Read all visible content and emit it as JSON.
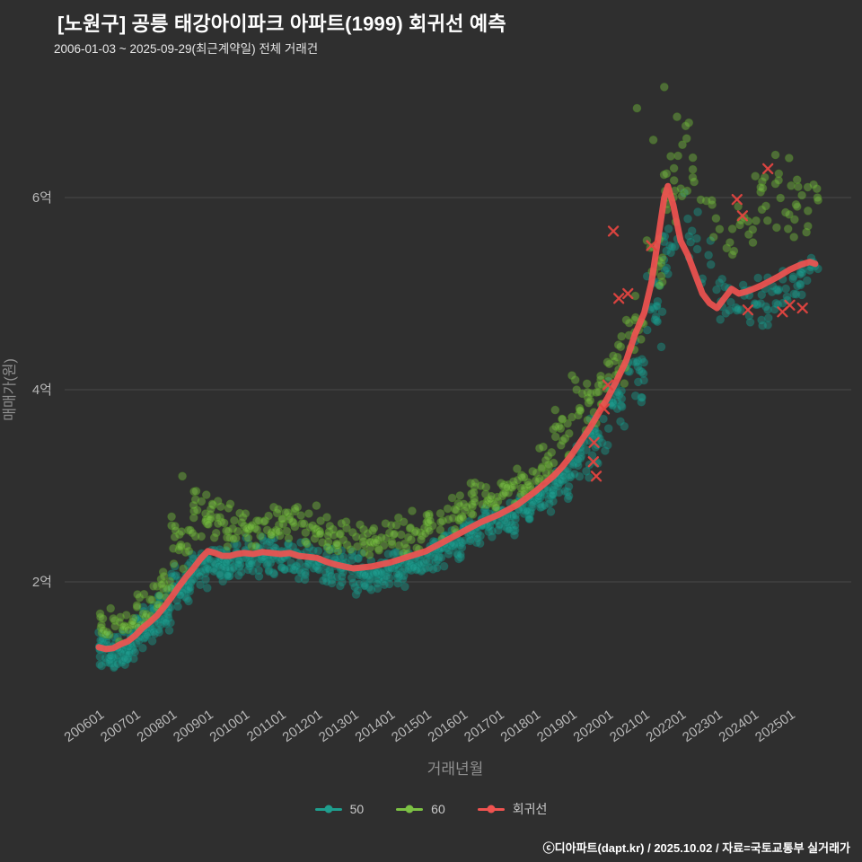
{
  "title": "[노원구] 공릉 태강아이파크 아파트(1999) 회귀선 예측",
  "subtitle": "2006-01-03 ~ 2025-09-29(최근계약일) 전체 거래건",
  "footer": "ⓒ디아파트(dapt.kr) / 2025.10.02 / 자료=국토교통부 실거래가",
  "chart_data": {
    "type": "scatter",
    "title": "[노원구] 공릉 태강아이파크 아파트(1999) 회귀선 예측",
    "xlabel": "거래년월",
    "ylabel": "매매가(원)",
    "x_tick_years": [
      2006,
      2007,
      2008,
      2009,
      2010,
      2011,
      2012,
      2013,
      2014,
      2015,
      2016,
      2017,
      2018,
      2019,
      2020,
      2021,
      2022,
      2023,
      2024,
      2025
    ],
    "x_tick_labels": [
      "200601",
      "200701",
      "200801",
      "200901",
      "201001",
      "201101",
      "201201",
      "201301",
      "201401",
      "201501",
      "201601",
      "201701",
      "201801",
      "201901",
      "202001",
      "202101",
      "202201",
      "202301",
      "202401",
      "202501"
    ],
    "y_ticks": [
      {
        "value": 2,
        "label": "2억"
      },
      {
        "value": 4,
        "label": "4억"
      },
      {
        "value": 6,
        "label": "6억"
      }
    ],
    "x_range": [
      2005.85,
      2025.95
    ],
    "y_range": [
      0.9,
      7.4
    ],
    "grid": "horizontal-only",
    "legend_position": "bottom-center",
    "colors": {
      "background": "#2f2f2f",
      "grid": "#4a4a4a",
      "tick_text": "#b8b8b8",
      "axis_title": "#909090"
    },
    "legend": [
      {
        "label": "50",
        "color": "#1f9e8e"
      },
      {
        "label": "60",
        "color": "#7cc144"
      },
      {
        "label": "회귀선",
        "color": "#ef5350"
      }
    ],
    "series": [
      {
        "name": "50",
        "kind": "scatter-bands",
        "color": "#1f9e8e",
        "stroke": "#117a6e",
        "bands": [
          [
            2006.0,
            1.05,
            1.5,
            45
          ],
          [
            2006.5,
            1.1,
            1.55,
            45
          ],
          [
            2007.0,
            1.25,
            1.75,
            40
          ],
          [
            2007.5,
            1.45,
            1.95,
            40
          ],
          [
            2008.0,
            1.7,
            2.2,
            40
          ],
          [
            2008.5,
            1.9,
            2.35,
            35
          ],
          [
            2009.0,
            2.0,
            2.4,
            30
          ],
          [
            2009.5,
            2.0,
            2.45,
            30
          ],
          [
            2010.0,
            2.0,
            2.5,
            30
          ],
          [
            2010.5,
            2.05,
            2.5,
            28
          ],
          [
            2011.0,
            2.05,
            2.5,
            28
          ],
          [
            2011.5,
            2.0,
            2.45,
            26
          ],
          [
            2012.0,
            1.95,
            2.4,
            26
          ],
          [
            2012.5,
            1.85,
            2.35,
            26
          ],
          [
            2013.0,
            1.8,
            2.3,
            28
          ],
          [
            2013.5,
            1.85,
            2.3,
            28
          ],
          [
            2014.0,
            1.9,
            2.35,
            28
          ],
          [
            2014.5,
            2.0,
            2.4,
            28
          ],
          [
            2015.0,
            2.1,
            2.5,
            30
          ],
          [
            2015.5,
            2.2,
            2.6,
            30
          ],
          [
            2016.0,
            2.3,
            2.7,
            30
          ],
          [
            2016.5,
            2.4,
            2.8,
            28
          ],
          [
            2017.0,
            2.45,
            2.85,
            28
          ],
          [
            2017.5,
            2.55,
            2.95,
            28
          ],
          [
            2018.0,
            2.65,
            3.1,
            30
          ],
          [
            2018.5,
            2.8,
            3.3,
            28
          ],
          [
            2019.0,
            3.0,
            3.6,
            24
          ],
          [
            2019.5,
            3.2,
            3.8,
            22
          ],
          [
            2020.0,
            3.5,
            4.2,
            22
          ],
          [
            2020.5,
            3.8,
            4.6,
            20
          ],
          [
            2021.0,
            4.4,
            5.3,
            18
          ],
          [
            2021.5,
            5.0,
            5.9,
            14
          ],
          [
            2022.0,
            5.3,
            6.0,
            8
          ],
          [
            2022.5,
            4.9,
            5.6,
            6
          ],
          [
            2023.0,
            4.6,
            5.2,
            10
          ],
          [
            2023.5,
            4.6,
            5.2,
            12
          ],
          [
            2024.0,
            4.6,
            5.2,
            14
          ],
          [
            2024.5,
            4.7,
            5.3,
            14
          ],
          [
            2025.0,
            4.9,
            5.4,
            14
          ],
          [
            2025.5,
            5.0,
            5.4,
            8
          ]
        ],
        "outliers": [
          [
            2022.1,
            6.05
          ]
        ]
      },
      {
        "name": "60",
        "kind": "scatter-bands",
        "color": "#7cc144",
        "stroke": "#4e8a25",
        "bands": [
          [
            2006.0,
            1.3,
            1.8,
            14
          ],
          [
            2006.5,
            1.35,
            1.85,
            14
          ],
          [
            2007.0,
            1.5,
            2.0,
            15
          ],
          [
            2007.5,
            1.7,
            2.2,
            16
          ],
          [
            2008.0,
            2.0,
            2.75,
            18
          ],
          [
            2008.5,
            2.2,
            3.05,
            18
          ],
          [
            2009.0,
            2.3,
            2.95,
            16
          ],
          [
            2009.5,
            2.3,
            2.85,
            16
          ],
          [
            2010.0,
            2.3,
            2.9,
            16
          ],
          [
            2010.5,
            2.35,
            2.9,
            15
          ],
          [
            2011.0,
            2.35,
            2.85,
            15
          ],
          [
            2011.5,
            2.3,
            2.8,
            14
          ],
          [
            2012.0,
            2.25,
            2.75,
            14
          ],
          [
            2012.5,
            2.2,
            2.7,
            13
          ],
          [
            2013.0,
            2.15,
            2.65,
            13
          ],
          [
            2013.5,
            2.2,
            2.65,
            13
          ],
          [
            2014.0,
            2.25,
            2.7,
            14
          ],
          [
            2014.5,
            2.3,
            2.75,
            14
          ],
          [
            2015.0,
            2.4,
            2.85,
            15
          ],
          [
            2015.5,
            2.5,
            2.95,
            15
          ],
          [
            2016.0,
            2.6,
            3.05,
            15
          ],
          [
            2016.5,
            2.65,
            3.1,
            15
          ],
          [
            2017.0,
            2.7,
            3.2,
            15
          ],
          [
            2017.5,
            2.8,
            3.3,
            15
          ],
          [
            2018.0,
            2.9,
            3.5,
            16
          ],
          [
            2018.5,
            3.1,
            3.9,
            16
          ],
          [
            2019.0,
            3.3,
            4.2,
            15
          ],
          [
            2019.5,
            3.6,
            4.4,
            14
          ],
          [
            2020.0,
            3.9,
            4.7,
            14
          ],
          [
            2020.5,
            4.2,
            5.1,
            13
          ],
          [
            2021.0,
            4.8,
            5.9,
            13
          ],
          [
            2021.5,
            5.5,
            6.7,
            13
          ],
          [
            2022.0,
            5.8,
            6.9,
            10
          ],
          [
            2022.5,
            5.4,
            6.2,
            6
          ],
          [
            2023.0,
            5.2,
            5.9,
            6
          ],
          [
            2023.5,
            5.3,
            6.1,
            8
          ],
          [
            2024.0,
            5.5,
            6.4,
            10
          ],
          [
            2024.5,
            5.6,
            6.5,
            10
          ],
          [
            2025.0,
            5.5,
            6.3,
            10
          ],
          [
            2025.5,
            5.6,
            6.2,
            6
          ]
        ],
        "outliers": [
          [
            2020.8,
            6.93
          ],
          [
            2021.55,
            7.15
          ],
          [
            2021.9,
            6.84
          ],
          [
            2021.25,
            6.6
          ],
          [
            2022.05,
            6.55
          ],
          [
            2008.3,
            3.1
          ]
        ]
      },
      {
        "name": "회귀선",
        "kind": "line",
        "color": "#ef5350",
        "points": [
          [
            2006.0,
            1.32
          ],
          [
            2006.2,
            1.3
          ],
          [
            2006.4,
            1.31
          ],
          [
            2006.6,
            1.35
          ],
          [
            2006.8,
            1.38
          ],
          [
            2007.0,
            1.44
          ],
          [
            2007.2,
            1.52
          ],
          [
            2007.4,
            1.58
          ],
          [
            2007.6,
            1.65
          ],
          [
            2007.8,
            1.74
          ],
          [
            2008.0,
            1.84
          ],
          [
            2008.2,
            1.95
          ],
          [
            2008.4,
            2.05
          ],
          [
            2008.6,
            2.14
          ],
          [
            2008.8,
            2.24
          ],
          [
            2009.0,
            2.32
          ],
          [
            2009.2,
            2.3
          ],
          [
            2009.4,
            2.27
          ],
          [
            2009.6,
            2.27
          ],
          [
            2009.8,
            2.29
          ],
          [
            2010.0,
            2.3
          ],
          [
            2010.25,
            2.29
          ],
          [
            2010.5,
            2.31
          ],
          [
            2010.75,
            2.3
          ],
          [
            2011.0,
            2.29
          ],
          [
            2011.25,
            2.3
          ],
          [
            2011.5,
            2.27
          ],
          [
            2011.75,
            2.26
          ],
          [
            2012.0,
            2.25
          ],
          [
            2012.25,
            2.21
          ],
          [
            2012.5,
            2.18
          ],
          [
            2012.75,
            2.16
          ],
          [
            2013.0,
            2.14
          ],
          [
            2013.25,
            2.15
          ],
          [
            2013.5,
            2.16
          ],
          [
            2013.75,
            2.18
          ],
          [
            2014.0,
            2.2
          ],
          [
            2014.25,
            2.23
          ],
          [
            2014.5,
            2.26
          ],
          [
            2014.75,
            2.29
          ],
          [
            2015.0,
            2.32
          ],
          [
            2015.25,
            2.37
          ],
          [
            2015.5,
            2.42
          ],
          [
            2015.75,
            2.47
          ],
          [
            2016.0,
            2.52
          ],
          [
            2016.25,
            2.57
          ],
          [
            2016.5,
            2.62
          ],
          [
            2016.75,
            2.66
          ],
          [
            2017.0,
            2.7
          ],
          [
            2017.25,
            2.75
          ],
          [
            2017.5,
            2.8
          ],
          [
            2017.75,
            2.87
          ],
          [
            2018.0,
            2.94
          ],
          [
            2018.25,
            3.02
          ],
          [
            2018.5,
            3.1
          ],
          [
            2018.75,
            3.2
          ],
          [
            2019.0,
            3.32
          ],
          [
            2019.25,
            3.46
          ],
          [
            2019.5,
            3.6
          ],
          [
            2019.75,
            3.76
          ],
          [
            2020.0,
            3.92
          ],
          [
            2020.25,
            4.1
          ],
          [
            2020.5,
            4.3
          ],
          [
            2020.75,
            4.58
          ],
          [
            2021.0,
            4.8
          ],
          [
            2021.2,
            5.12
          ],
          [
            2021.4,
            5.62
          ],
          [
            2021.55,
            6.0
          ],
          [
            2021.65,
            6.12
          ],
          [
            2021.8,
            5.92
          ],
          [
            2022.0,
            5.55
          ],
          [
            2022.2,
            5.4
          ],
          [
            2022.4,
            5.2
          ],
          [
            2022.6,
            5.0
          ],
          [
            2022.8,
            4.9
          ],
          [
            2023.0,
            4.85
          ],
          [
            2023.2,
            4.95
          ],
          [
            2023.4,
            5.05
          ],
          [
            2023.6,
            5.0
          ],
          [
            2023.8,
            5.02
          ],
          [
            2024.0,
            5.05
          ],
          [
            2024.2,
            5.08
          ],
          [
            2024.4,
            5.12
          ],
          [
            2024.7,
            5.18
          ],
          [
            2025.0,
            5.25
          ],
          [
            2025.3,
            5.3
          ],
          [
            2025.55,
            5.33
          ],
          [
            2025.7,
            5.31
          ]
        ]
      }
    ],
    "cancelled_marks": {
      "label": "cancelled-transaction-x",
      "color": "#e04540",
      "points": [
        [
          2019.6,
          3.25
        ],
        [
          2019.62,
          3.45
        ],
        [
          2019.68,
          3.1
        ],
        [
          2019.9,
          3.8
        ],
        [
          2020.0,
          4.05
        ],
        [
          2020.15,
          5.65
        ],
        [
          2020.3,
          4.95
        ],
        [
          2020.55,
          5.0
        ],
        [
          2021.2,
          5.5
        ],
        [
          2023.55,
          5.98
        ],
        [
          2023.7,
          5.81
        ],
        [
          2023.85,
          4.83
        ],
        [
          2024.4,
          6.3
        ],
        [
          2024.8,
          4.81
        ],
        [
          2025.0,
          4.88
        ],
        [
          2025.35,
          4.85
        ]
      ]
    }
  }
}
